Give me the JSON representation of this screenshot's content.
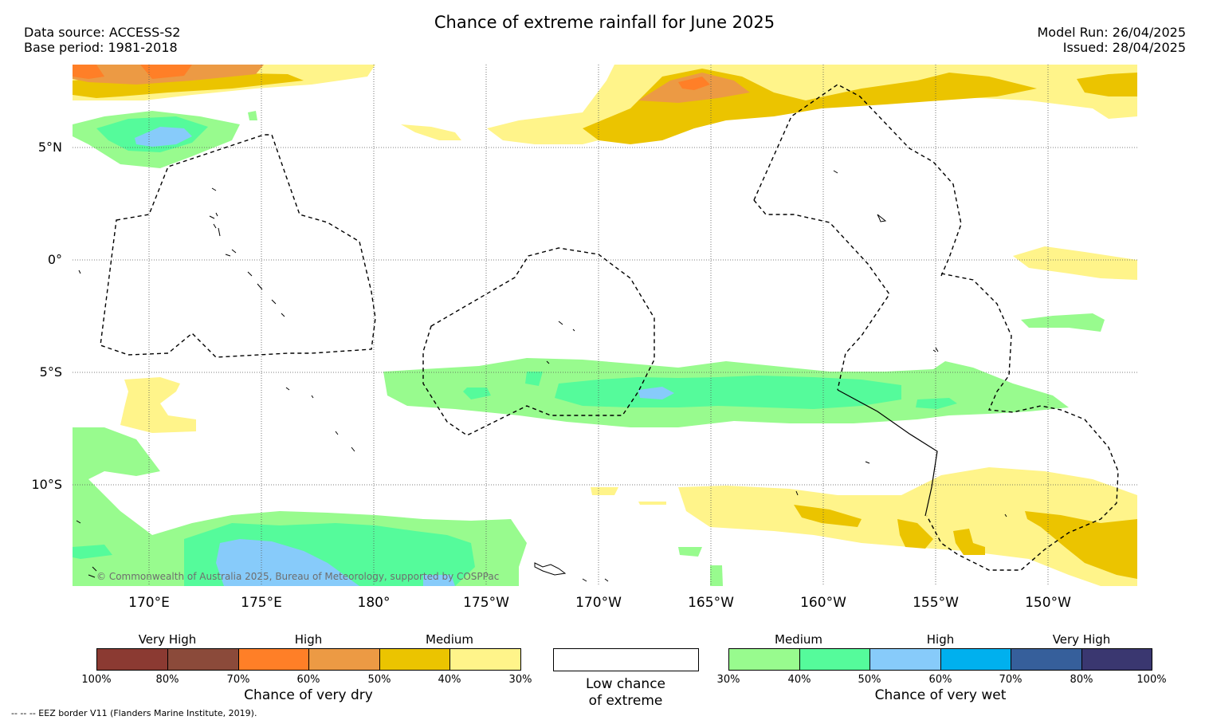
{
  "header": {
    "title": "Chance of extreme rainfall for June 2025",
    "data_source": "Data source: ACCESS-S2",
    "base_period": "Base period: 1981-2018",
    "model_run": "Model Run: 26/04/2025",
    "issued": "Issued: 28/04/2025"
  },
  "map": {
    "lat_labels": [
      "5°N",
      "0°",
      "5°S",
      "10°S"
    ],
    "lon_labels": [
      "170°E",
      "175°E",
      "180°",
      "175°W",
      "170°W",
      "165°W",
      "160°W",
      "155°W",
      "150°W"
    ],
    "copyright": "© Commonwealth of Australia 2025, Bureau of Meteorology, supported by COSPPac"
  },
  "legend_dry": {
    "categories": [
      "Very High",
      "High",
      "Medium"
    ],
    "ticks": [
      "100%",
      "80%",
      "70%",
      "60%",
      "50%",
      "40%",
      "30%"
    ],
    "colors": [
      "#8b3a32",
      "#8b4a3a",
      "#ff7f27",
      "#ec9a44",
      "#ebc400",
      "#fff48a"
    ],
    "caption": "Chance of very dry"
  },
  "legend_neutral": {
    "line1": "Low chance",
    "line2": "of extreme"
  },
  "legend_wet": {
    "categories": [
      "Medium",
      "High",
      "Very High"
    ],
    "ticks": [
      "30%",
      "40%",
      "50%",
      "60%",
      "70%",
      "80%",
      "100%"
    ],
    "colors": [
      "#98fb8e",
      "#55fb9b",
      "#87cbfa",
      "#00b0ee",
      "#365f9b",
      "#3a3770"
    ],
    "caption": "Chance of very wet"
  },
  "footnote": "-- -- -- EEZ border V11 (Flanders Marine Institute, 2019)."
}
